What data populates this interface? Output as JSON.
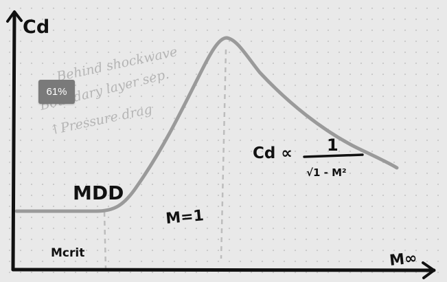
{
  "zoom": {
    "level": "61%"
  },
  "axes": {
    "y_label": "Cd",
    "x_label": "M∞"
  },
  "annotations": {
    "mdd": "MDD",
    "mcrit": "Mcrit",
    "m_equals_one": "M=1",
    "formula_lhs": "Cd ∝",
    "formula_numerator": "1",
    "formula_denominator": "√1 - M²"
  },
  "faint_notes": {
    "line1": "Behind shockwave",
    "line2": "Boundary layer sep.",
    "line3": "↑Pressure drag"
  },
  "colors": {
    "ink": "#111111",
    "curve": "#9a9a9a",
    "guide": "#bdbdbd",
    "faint_text": "#b5b5b5"
  }
}
